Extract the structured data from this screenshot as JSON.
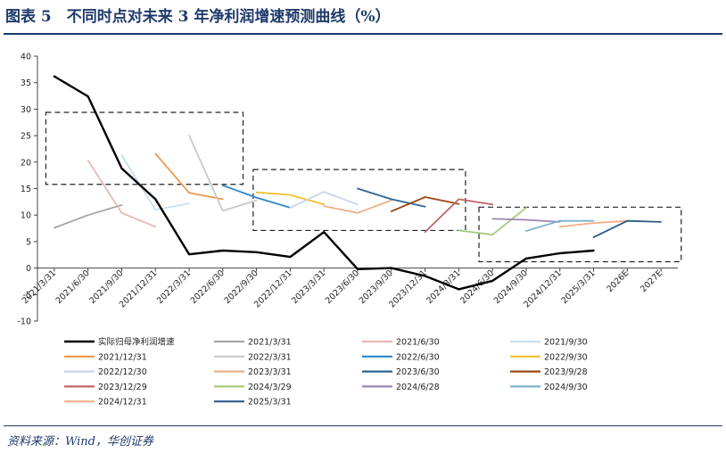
{
  "header": {
    "title": "图表 5　不同时点对未来 3 年净利润增速预测曲线（%）"
  },
  "footer": {
    "source": "资料来源：Wind，华创证券"
  },
  "chart_data": {
    "type": "line",
    "title": "",
    "xlabel": "",
    "ylabel": "",
    "ylim": [
      -10,
      40
    ],
    "yticks": [
      -10,
      -5,
      0,
      5,
      10,
      15,
      20,
      25,
      30,
      35,
      40
    ],
    "grid": false,
    "legend_position": "bottom",
    "categories": [
      "2021/3/31",
      "2021/6/30",
      "2021/9/30",
      "2021/12/31",
      "2022/3/31",
      "2022/6/30",
      "2022/9/30",
      "2022/12/31",
      "2023/3/31",
      "2023/6/30",
      "2023/9/30",
      "2023/12/31",
      "2024/3/31",
      "2024/6/30",
      "2024/9/30",
      "2024/12/31",
      "2025/3/31",
      "2026E",
      "2027E"
    ],
    "series": [
      {
        "name": "实际归母净利润增速",
        "color": "#000000",
        "width": 2.4,
        "points": [
          [
            0,
            36.2
          ],
          [
            1,
            32.4
          ],
          [
            2,
            18.8
          ],
          [
            3,
            13
          ],
          [
            4,
            2.6
          ],
          [
            5,
            3.3
          ],
          [
            6,
            3
          ],
          [
            7,
            2.1
          ],
          [
            8,
            6.8
          ],
          [
            9,
            -0.2
          ],
          [
            10,
            0
          ],
          [
            11,
            -1.5
          ],
          [
            12,
            -4
          ],
          [
            13,
            -2.4
          ],
          [
            14,
            1.8
          ],
          [
            15,
            2.8
          ],
          [
            16,
            3.3
          ]
        ]
      },
      {
        "name": "2021/3/31",
        "color": "#a6a6a6",
        "points": [
          [
            0,
            7.6
          ],
          [
            1,
            10
          ],
          [
            2,
            11.9
          ]
        ]
      },
      {
        "name": "2021/6/30",
        "color": "#e6b8b7",
        "points": [
          [
            1,
            20.3
          ],
          [
            2,
            10.4
          ],
          [
            3,
            7.8
          ]
        ]
      },
      {
        "name": "2021/9/30",
        "color": "#c5e0ec",
        "points": [
          [
            2,
            21.3
          ],
          [
            3,
            11
          ],
          [
            4,
            12.2
          ]
        ]
      },
      {
        "name": "2021/12/31",
        "color": "#f0964a",
        "points": [
          [
            3,
            21.6
          ],
          [
            4,
            14.2
          ],
          [
            5,
            13
          ]
        ]
      },
      {
        "name": "2022/3/31",
        "color": "#c8c8c8",
        "points": [
          [
            4,
            25
          ],
          [
            5,
            10.8
          ],
          [
            6,
            12.8
          ]
        ]
      },
      {
        "name": "2022/6/30",
        "color": "#2e86c8",
        "points": [
          [
            5,
            15.6
          ],
          [
            6,
            13.3
          ],
          [
            7,
            11.4
          ]
        ]
      },
      {
        "name": "2022/9/30",
        "color": "#f2c12e",
        "points": [
          [
            6,
            14.3
          ],
          [
            7,
            13.8
          ],
          [
            8,
            12
          ]
        ]
      },
      {
        "name": "2022/12/30",
        "color": "#c8d4ea",
        "points": [
          [
            7,
            11.4
          ],
          [
            8,
            14.4
          ],
          [
            9,
            12
          ]
        ]
      },
      {
        "name": "2023/3/31",
        "color": "#e9b08a",
        "points": [
          [
            8,
            11.7
          ],
          [
            9,
            10.4
          ],
          [
            10,
            12.8
          ]
        ]
      },
      {
        "name": "2023/6/30",
        "color": "#2f6392",
        "points": [
          [
            9,
            15
          ],
          [
            10,
            13
          ],
          [
            11,
            11.6
          ]
        ]
      },
      {
        "name": "2023/9/28",
        "color": "#9c4a16",
        "points": [
          [
            10,
            10.7
          ],
          [
            11,
            13.4
          ],
          [
            12,
            12.1
          ]
        ]
      },
      {
        "name": "2023/12/29",
        "color": "#c0686a",
        "points": [
          [
            11,
            6.8
          ],
          [
            12,
            13
          ],
          [
            13,
            12
          ]
        ]
      },
      {
        "name": "2024/3/29",
        "color": "#a9ca7a",
        "points": [
          [
            12,
            7.1
          ],
          [
            13,
            6.3
          ],
          [
            14,
            11.4
          ]
        ]
      },
      {
        "name": "2024/6/28",
        "color": "#9b86b5",
        "points": [
          [
            13,
            9.3
          ],
          [
            14,
            9.1
          ],
          [
            15,
            8.7
          ]
        ]
      },
      {
        "name": "2024/9/30",
        "color": "#7ab3d0",
        "points": [
          [
            14,
            7
          ],
          [
            15,
            8.9
          ],
          [
            16,
            8.9
          ]
        ]
      },
      {
        "name": "2024/12/31",
        "color": "#f3ae86",
        "points": [
          [
            15,
            7.8
          ],
          [
            16,
            8.5
          ],
          [
            17,
            8.9
          ]
        ]
      },
      {
        "name": "2025/3/31",
        "color": "#2d5a8c",
        "points": [
          [
            16,
            5.8
          ],
          [
            17,
            8.9
          ],
          [
            18,
            8.7
          ]
        ]
      }
    ],
    "annotations": [
      {
        "type": "dashed-box",
        "x_from": -0.25,
        "x_to": 5.6,
        "y_from": 15.8,
        "y_to": 29.4
      },
      {
        "type": "dashed-box",
        "x_from": 5.9,
        "x_to": 12.2,
        "y_from": 7.1,
        "y_to": 18.6
      },
      {
        "type": "dashed-box",
        "x_from": 12.6,
        "x_to": 18.6,
        "y_from": 1.2,
        "y_to": 11.5
      }
    ]
  }
}
